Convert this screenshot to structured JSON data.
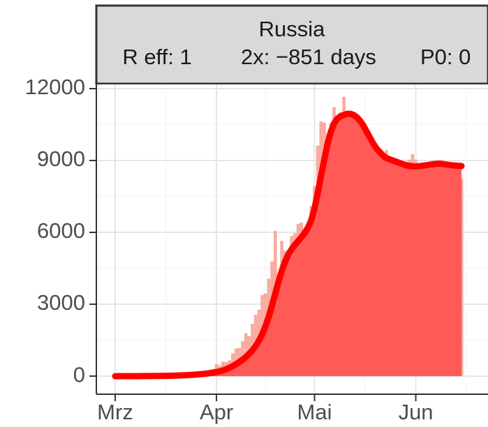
{
  "chart_data": {
    "type": "bar",
    "title": "Russia",
    "annotations": [
      "R eff: 1",
      "2x: −851 days",
      "P0: 0"
    ],
    "categories": [
      "Mrz",
      null,
      null,
      null,
      null,
      null,
      null,
      null,
      null,
      null,
      null,
      null,
      null,
      null,
      null,
      null,
      null,
      null,
      null,
      null,
      null,
      null,
      null,
      null,
      null,
      null,
      null,
      null,
      null,
      null,
      null,
      "Apr",
      null,
      null,
      null,
      null,
      null,
      null,
      null,
      null,
      null,
      null,
      null,
      null,
      null,
      null,
      null,
      null,
      null,
      null,
      null,
      null,
      null,
      null,
      null,
      null,
      null,
      null,
      null,
      null,
      null,
      "Mai",
      null,
      null,
      null,
      null,
      null,
      null,
      null,
      null,
      null,
      null,
      null,
      null,
      null,
      null,
      null,
      null,
      null,
      null,
      null,
      null,
      null,
      null,
      null,
      null,
      null,
      null,
      null,
      null,
      null,
      null,
      "Jun",
      null,
      null,
      null,
      null,
      null,
      null,
      null,
      null,
      null,
      null,
      null,
      null,
      null,
      null
    ],
    "series": [
      {
        "type": "bar",
        "color": "#f9aba0",
        "values": [
          0,
          0,
          0,
          0,
          0,
          0,
          0,
          2,
          1,
          3,
          4,
          6,
          8,
          3,
          11,
          14,
          6,
          18,
          28,
          33,
          54,
          52,
          57,
          71,
          57,
          163,
          182,
          196,
          228,
          270,
          302,
          500,
          440,
          601,
          582,
          658,
          954,
          1154,
          1175,
          1459,
          1786,
          1667,
          2186,
          2558,
          2774,
          3388,
          3448,
          4070,
          4785,
          6060,
          4268,
          5642,
          5236,
          4774,
          5849,
          5966,
          6361,
          6411,
          5841,
          6196,
          7099,
          7933,
          9623,
          10633,
          10581,
          10102,
          10559,
          11231,
          10817,
          11012,
          11656,
          10899,
          10028,
          9974,
          10598,
          9200,
          9709,
          8926,
          8764,
          9263,
          8849,
          8894,
          8599,
          9434,
          8915,
          8338,
          8371,
          8915,
          8572,
          8952,
          9035,
          9268,
          9035,
          8863,
          8536,
          8726,
          8855,
          8985,
          8595,
          8779,
          8987,
          8706,
          8404,
          8779,
          8248,
          8835,
          8246
        ]
      },
      {
        "type": "line",
        "color": "#ff0000",
        "fill": "#ff5a55",
        "values": [
          0,
          0,
          0,
          0,
          0,
          0,
          0,
          0,
          1,
          2,
          3,
          4,
          5,
          6,
          8,
          10,
          13,
          16,
          20,
          25,
          30,
          36,
          42,
          50,
          58,
          68,
          80,
          93,
          108,
          125,
          145,
          170,
          200,
          240,
          290,
          350,
          420,
          500,
          590,
          690,
          800,
          930,
          1080,
          1260,
          1480,
          1750,
          2080,
          2480,
          2950,
          3450,
          3950,
          4400,
          4780,
          5080,
          5300,
          5480,
          5640,
          5800,
          5980,
          6200,
          6500,
          7000,
          7650,
          8350,
          9050,
          9700,
          10200,
          10550,
          10750,
          10850,
          10900,
          10950,
          10950,
          10900,
          10800,
          10650,
          10450,
          10200,
          9950,
          9700,
          9500,
          9350,
          9200,
          9100,
          9050,
          9000,
          8950,
          8900,
          8850,
          8800,
          8780,
          8760,
          8750,
          8760,
          8780,
          8800,
          8820,
          8840,
          8860,
          8870,
          8860,
          8840,
          8820,
          8800,
          8790,
          8780,
          8770
        ]
      }
    ],
    "ylim": [
      -755,
      12175
    ],
    "yticks": [
      0,
      3000,
      6000,
      9000,
      12000
    ],
    "grid": true
  }
}
